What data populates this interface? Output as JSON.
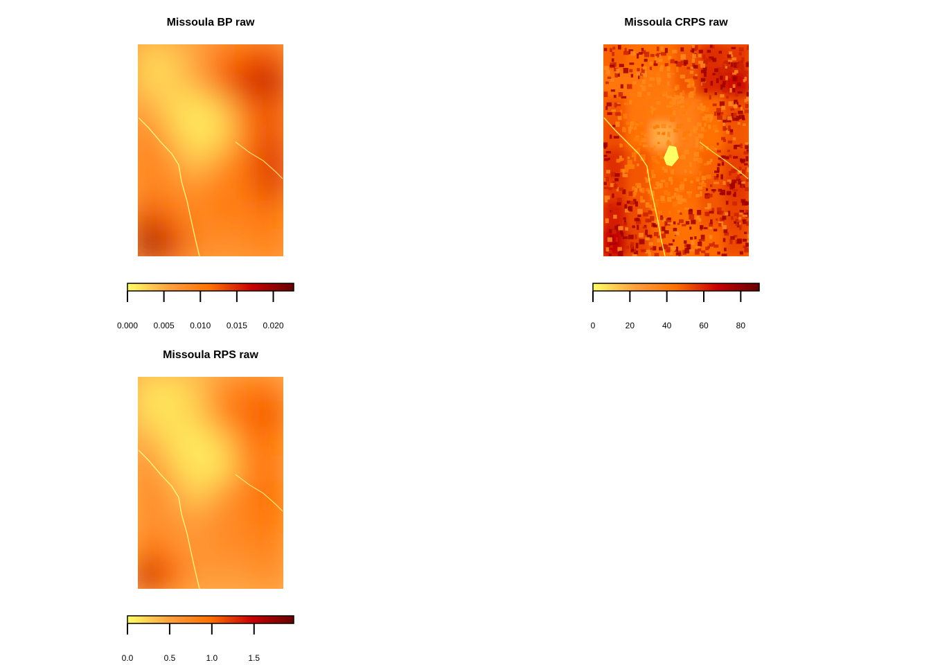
{
  "chart_data": [
    {
      "type": "heatmap",
      "title": "Missoula BP raw",
      "colorbar": {
        "colormap": "heat (yellow to dark red)",
        "colors": [
          "#ffff66",
          "#ffa040",
          "#ff6f00",
          "#c80000",
          "#660000"
        ],
        "range": [
          0,
          0.0228
        ],
        "ticks": [
          0,
          0.005,
          0.01,
          0.015,
          0.02
        ],
        "tick_labels": [
          "0.000",
          "0.005",
          "0.010",
          "0.015",
          "0.020"
        ]
      },
      "values_grid": {
        "rows": 8,
        "cols": 6,
        "values": [
          [
            0.002,
            0.003,
            0.006,
            0.011,
            0.012,
            0.013
          ],
          [
            0.002,
            0.003,
            0.005,
            0.012,
            0.016,
            0.018
          ],
          [
            0.006,
            0.002,
            0.001,
            0.003,
            0.011,
            0.013
          ],
          [
            0.01,
            0.004,
            0.001,
            0.002,
            0.01,
            0.014
          ],
          [
            0.01,
            0.007,
            0.003,
            0.008,
            0.011,
            0.016
          ],
          [
            0.009,
            0.008,
            0.008,
            0.01,
            0.01,
            0.015
          ],
          [
            0.014,
            0.01,
            0.008,
            0.01,
            0.009,
            0.011
          ],
          [
            0.021,
            0.015,
            0.008,
            0.008,
            0.008,
            0.01
          ]
        ]
      }
    },
    {
      "type": "heatmap",
      "title": "Missoula CRPS raw",
      "colorbar": {
        "colormap": "heat (yellow to dark red)",
        "colors": [
          "#ffff66",
          "#ffa040",
          "#ff6f00",
          "#c80000",
          "#660000"
        ],
        "range": [
          0,
          90
        ],
        "ticks": [
          0,
          20,
          40,
          60,
          80
        ],
        "tick_labels": [
          "0",
          "20",
          "40",
          "60",
          "80"
        ]
      },
      "values_grid": {
        "rows": 8,
        "cols": 6,
        "values": [
          [
            48,
            45,
            45,
            50,
            58,
            56
          ],
          [
            42,
            42,
            42,
            50,
            60,
            66
          ],
          [
            50,
            42,
            40,
            38,
            46,
            52
          ],
          [
            52,
            44,
            20,
            38,
            44,
            50
          ],
          [
            58,
            50,
            44,
            40,
            48,
            54
          ],
          [
            56,
            50,
            46,
            46,
            50,
            56
          ],
          [
            62,
            52,
            46,
            44,
            50,
            54
          ],
          [
            68,
            54,
            46,
            44,
            46,
            52
          ]
        ]
      }
    },
    {
      "type": "heatmap",
      "title": "Missoula RPS raw",
      "colorbar": {
        "colormap": "heat (yellow to dark red)",
        "colors": [
          "#ffff66",
          "#ffa040",
          "#ff6f00",
          "#c80000",
          "#660000"
        ],
        "range": [
          0,
          1.97
        ],
        "ticks": [
          0,
          0.5,
          1.0,
          1.5
        ],
        "tick_labels": [
          "0.0",
          "0.5",
          "1.0",
          "1.5"
        ]
      },
      "values_grid": {
        "rows": 8,
        "cols": 6,
        "values": [
          [
            0.15,
            0.15,
            0.3,
            0.7,
            0.85,
            0.9
          ],
          [
            0.15,
            0.15,
            0.25,
            0.75,
            1.0,
            1.1
          ],
          [
            0.45,
            0.15,
            0.1,
            0.25,
            0.8,
            0.95
          ],
          [
            0.7,
            0.3,
            0.1,
            0.15,
            0.7,
            0.9
          ],
          [
            0.75,
            0.5,
            0.25,
            0.55,
            0.8,
            1.0
          ],
          [
            0.7,
            0.55,
            0.55,
            0.7,
            0.75,
            0.95
          ],
          [
            0.95,
            0.7,
            0.55,
            0.7,
            0.7,
            0.8
          ],
          [
            1.5,
            1.0,
            0.55,
            0.55,
            0.55,
            0.7
          ]
        ]
      }
    }
  ]
}
